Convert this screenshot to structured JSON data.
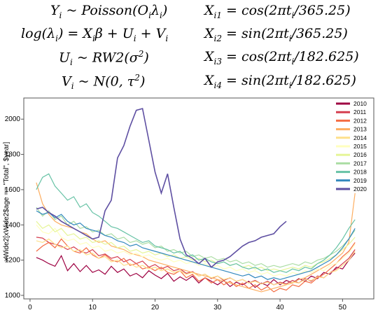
{
  "formulas": {
    "left": [
      {
        "lhs": "Y",
        "lhs_sub": "i",
        "rhs": "~ Poisson(O",
        "rhs_sub": "i",
        "rhs2": "λ",
        "rhs2_sub": "i",
        "rhs3": ")"
      },
      {
        "text": "log(λ",
        "sub": "i",
        "text2": ") = X",
        "sub2": "i",
        "text3": "β + U",
        "sub3": "i",
        "text4": " + V",
        "sub4": "i"
      },
      {
        "text": "U",
        "sub": "i",
        "text2": " ~ RW2(σ",
        "sup": "2",
        "text3": ")"
      },
      {
        "text": "V",
        "sub": "i",
        "text2": " ~ N(0, τ",
        "sup": "2",
        "text3": ")"
      }
    ],
    "right": [
      {
        "var": "X",
        "sub": "i1",
        "expr": " = cos(2πt",
        "sub2": "i",
        "expr2": "/365.25)"
      },
      {
        "var": "X",
        "sub": "i2",
        "expr": " = sin(2πt",
        "sub2": "i",
        "expr2": "/365.25)"
      },
      {
        "var": "X",
        "sub": "i3",
        "expr": " = cos(2πt",
        "sub2": "i",
        "expr2": "/182.625)"
      },
      {
        "var": "X",
        "sub": "i4",
        "expr": " = sin(2πt",
        "sub2": "i",
        "expr2": "/182.625)"
      }
    ]
  },
  "chart_data": {
    "type": "line",
    "ylabel": "xWide2[xWide2$age == \"Total\", $year]",
    "xlabel": "",
    "xlim": [
      -1,
      55
    ],
    "ylim": [
      980,
      2120
    ],
    "xticks": [
      0,
      10,
      20,
      30,
      40,
      50
    ],
    "yticks": [
      1000,
      1200,
      1400,
      1600,
      1800,
      2000
    ],
    "legend_position": "top-right",
    "series": [
      {
        "name": "2010",
        "color": "#9e0142",
        "values": [
          1215,
          1200,
          1180,
          1165,
          1225,
          1140,
          1180,
          1135,
          1170,
          1130,
          1145,
          1120,
          1165,
          1130,
          1150,
          1110,
          1125,
          1100,
          1140,
          1115,
          1095,
          1125,
          1080,
          1105,
          1085,
          1110,
          1070,
          1100,
          1080,
          1060,
          1085,
          1050,
          1075,
          1060,
          1080,
          1045,
          1070,
          1055,
          1090,
          1060,
          1085,
          1070,
          1095,
          1080,
          1110,
          1095,
          1130,
          1120,
          1160,
          1150,
          1200,
          1240
        ]
      },
      {
        "name": "2011",
        "color": "#d53e4f",
        "values": [
          1330,
          1325,
          1300,
          1290,
          1280,
          1260,
          1275,
          1250,
          1240,
          1260,
          1225,
          1235,
          1210,
          1220,
          1190,
          1205,
          1180,
          1195,
          1160,
          1175,
          1150,
          1165,
          1140,
          1150,
          1125,
          1135,
          1110,
          1120,
          1095,
          1110,
          1085,
          1100,
          1080,
          1090,
          1070,
          1085,
          1065,
          1080,
          1060,
          1075,
          1065,
          1085,
          1070,
          1095,
          1080,
          1110,
          1100,
          1130,
          1150,
          1180,
          1210,
          1260
        ]
      },
      {
        "name": "2012",
        "color": "#f46d43",
        "values": [
          1250,
          1280,
          1300,
          1270,
          1320,
          1280,
          1250,
          1240,
          1270,
          1230,
          1210,
          1230,
          1200,
          1190,
          1210,
          1170,
          1180,
          1150,
          1160,
          1140,
          1160,
          1130,
          1120,
          1140,
          1100,
          1120,
          1080,
          1100,
          1070,
          1090,
          1060,
          1080,
          1050,
          1070,
          1040,
          1060,
          1030,
          1050,
          1020,
          1040,
          1030,
          1060,
          1050,
          1080,
          1070,
          1100,
          1120,
          1150,
          1180,
          1220,
          1250,
          1300
        ]
      },
      {
        "name": "2013",
        "color": "#fdae61",
        "values": [
          1640,
          1520,
          1460,
          1420,
          1400,
          1390,
          1380,
          1360,
          1350,
          1320,
          1300,
          1310,
          1280,
          1270,
          1260,
          1240,
          1230,
          1220,
          1200,
          1190,
          1180,
          1170,
          1160,
          1150,
          1140,
          1130,
          1120,
          1110,
          1100,
          1090,
          1080,
          1070,
          1060,
          1050,
          1040,
          1030,
          1020,
          1030,
          1040,
          1050,
          1060,
          1070,
          1090,
          1100,
          1120,
          1140,
          1160,
          1180,
          1210,
          1240,
          1300,
          1580
        ]
      },
      {
        "name": "2014",
        "color": "#fee08b",
        "values": [
          1310,
          1300,
          1320,
          1290,
          1270,
          1280,
          1250,
          1260,
          1230,
          1240,
          1210,
          1220,
          1190,
          1200,
          1170,
          1180,
          1160,
          1170,
          1150,
          1160,
          1140,
          1150,
          1130,
          1140,
          1120,
          1130,
          1110,
          1120,
          1100,
          1110,
          1090,
          1100,
          1080,
          1090,
          1070,
          1080,
          1065,
          1075,
          1060,
          1070,
          1060,
          1075,
          1070,
          1090,
          1085,
          1105,
          1100,
          1130,
          1140,
          1170,
          1200,
          1250
        ]
      },
      {
        "name": "2015",
        "color": "#ffffbf",
        "values": [
          1400,
          1360,
          1350,
          1380,
          1330,
          1310,
          1320,
          1290,
          1300,
          1270,
          1280,
          1250,
          1260,
          1240,
          1250,
          1230,
          1240,
          1220,
          1230,
          1210,
          1200,
          1210,
          1190,
          1200,
          1180,
          1190,
          1170,
          1180,
          1160,
          1170,
          1150,
          1160,
          1140,
          1150,
          1130,
          1140,
          1120,
          1130,
          1110,
          1120,
          1110,
          1130,
          1120,
          1140,
          1130,
          1150,
          1140,
          1170,
          1180,
          1210,
          1240,
          1290
        ]
      },
      {
        "name": "2016",
        "color": "#e6f598",
        "values": [
          1420,
          1380,
          1400,
          1360,
          1380,
          1340,
          1350,
          1320,
          1330,
          1300,
          1310,
          1290,
          1300,
          1270,
          1280,
          1250,
          1260,
          1240,
          1250,
          1230,
          1240,
          1220,
          1230,
          1210,
          1220,
          1200,
          1210,
          1190,
          1200,
          1180,
          1190,
          1170,
          1180,
          1160,
          1170,
          1150,
          1160,
          1140,
          1150,
          1140,
          1150,
          1160,
          1150,
          1170,
          1160,
          1180,
          1190,
          1210,
          1230,
          1260,
          1290,
          1330
        ]
      },
      {
        "name": "2017",
        "color": "#abdda4",
        "values": [
          1500,
          1450,
          1480,
          1430,
          1450,
          1400,
          1420,
          1380,
          1390,
          1360,
          1370,
          1340,
          1350,
          1320,
          1330,
          1300,
          1310,
          1290,
          1300,
          1270,
          1280,
          1250,
          1260,
          1240,
          1250,
          1220,
          1230,
          1210,
          1220,
          1200,
          1210,
          1190,
          1200,
          1180,
          1190,
          1170,
          1180,
          1160,
          1170,
          1160,
          1170,
          1180,
          1170,
          1190,
          1180,
          1200,
          1210,
          1230,
          1250,
          1280,
          1320,
          1370
        ]
      },
      {
        "name": "2018",
        "color": "#66c2a5",
        "values": [
          1600,
          1670,
          1690,
          1620,
          1580,
          1540,
          1560,
          1500,
          1520,
          1470,
          1450,
          1420,
          1390,
          1380,
          1360,
          1340,
          1320,
          1300,
          1310,
          1280,
          1270,
          1260,
          1240,
          1250,
          1220,
          1230,
          1200,
          1210,
          1190,
          1180,
          1190,
          1170,
          1180,
          1160,
          1150,
          1160,
          1140,
          1150,
          1130,
          1140,
          1130,
          1150,
          1140,
          1160,
          1150,
          1180,
          1200,
          1230,
          1270,
          1320,
          1380,
          1430
        ]
      },
      {
        "name": "2019",
        "color": "#3288bd",
        "values": [
          1480,
          1460,
          1470,
          1440,
          1460,
          1420,
          1400,
          1410,
          1380,
          1370,
          1360,
          1340,
          1330,
          1310,
          1300,
          1280,
          1290,
          1270,
          1260,
          1250,
          1240,
          1230,
          1220,
          1210,
          1200,
          1190,
          1180,
          1170,
          1160,
          1150,
          1140,
          1130,
          1120,
          1110,
          1120,
          1100,
          1110,
          1090,
          1100,
          1090,
          1100,
          1110,
          1120,
          1130,
          1140,
          1160,
          1180,
          1200,
          1230,
          1270,
          1320,
          1380
        ]
      },
      {
        "name": "2020",
        "color": "#5e4fa2",
        "values": [
          1490,
          1500,
          1470,
          1450,
          1420,
          1400,
          1380,
          1360,
          1340,
          1320,
          1330,
          1480,
          1540,
          1780,
          1850,
          1960,
          2050,
          2060,
          1880,
          1700,
          1580,
          1690,
          1500,
          1320,
          1230,
          1210,
          1180,
          1210,
          1160,
          1190,
          1200,
          1220,
          1250,
          1280,
          1300,
          1310,
          1330,
          1340,
          1350,
          1390,
          1420,
          null,
          null,
          null,
          null,
          null,
          null,
          null,
          null,
          null,
          null,
          null
        ]
      }
    ]
  }
}
